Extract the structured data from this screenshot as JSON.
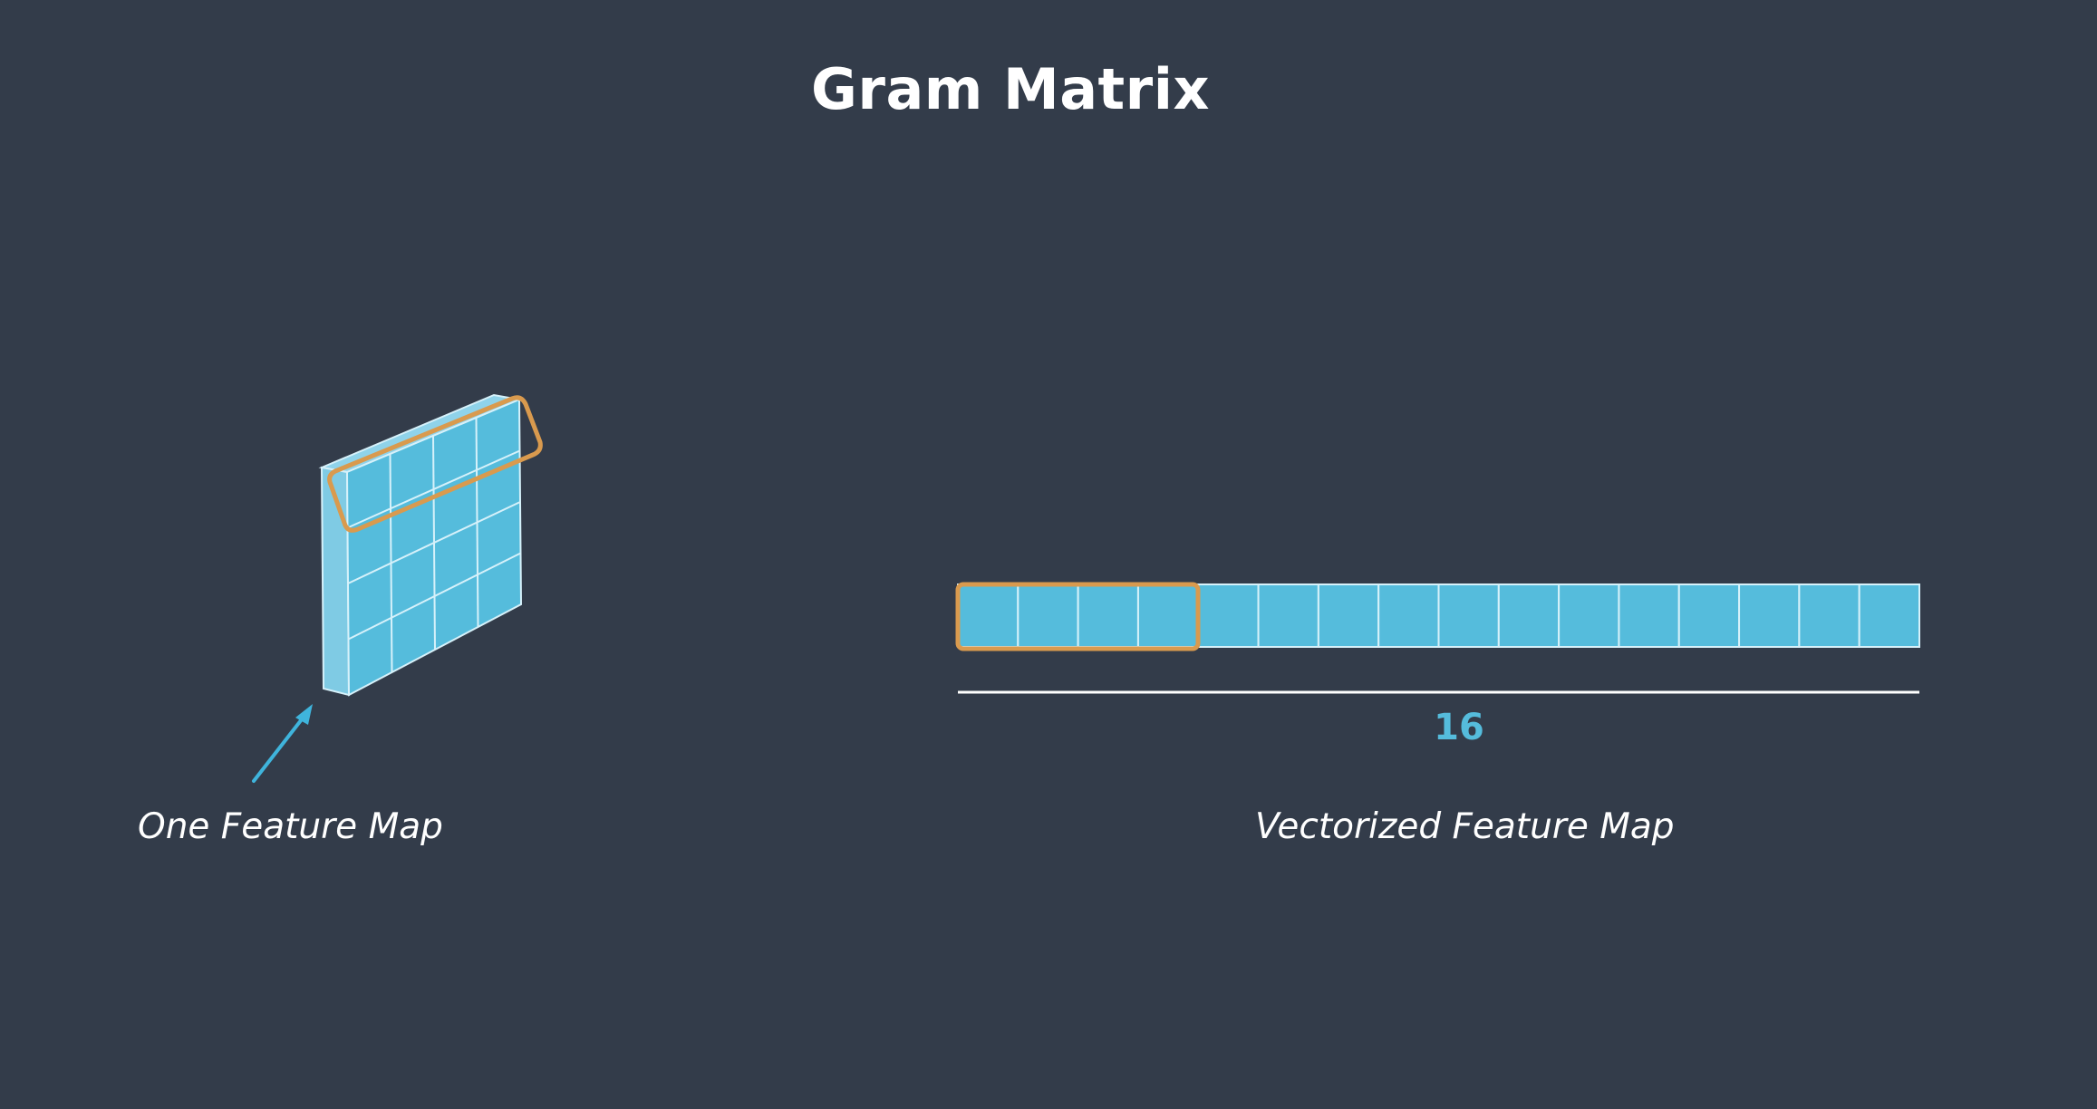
{
  "title": "Gram Matrix",
  "left_caption": "One Feature Map",
  "right_caption": "Vectorized Feature Map",
  "vector_length_label": "16",
  "feature_map": {
    "rows": 4,
    "cols": 4,
    "highlighted_row": 1
  },
  "vector": {
    "cells": 16,
    "highlighted_cells": 4
  },
  "colors": {
    "background": "#333c4a",
    "cell_fill": "#55bcdc",
    "cell_side": "#8fd3ea",
    "cell_line": "#d6f1fa",
    "highlight": "#d99a4e",
    "arrow": "#3fb4dc",
    "label_accent": "#55bcdc",
    "text": "#ffffff"
  }
}
